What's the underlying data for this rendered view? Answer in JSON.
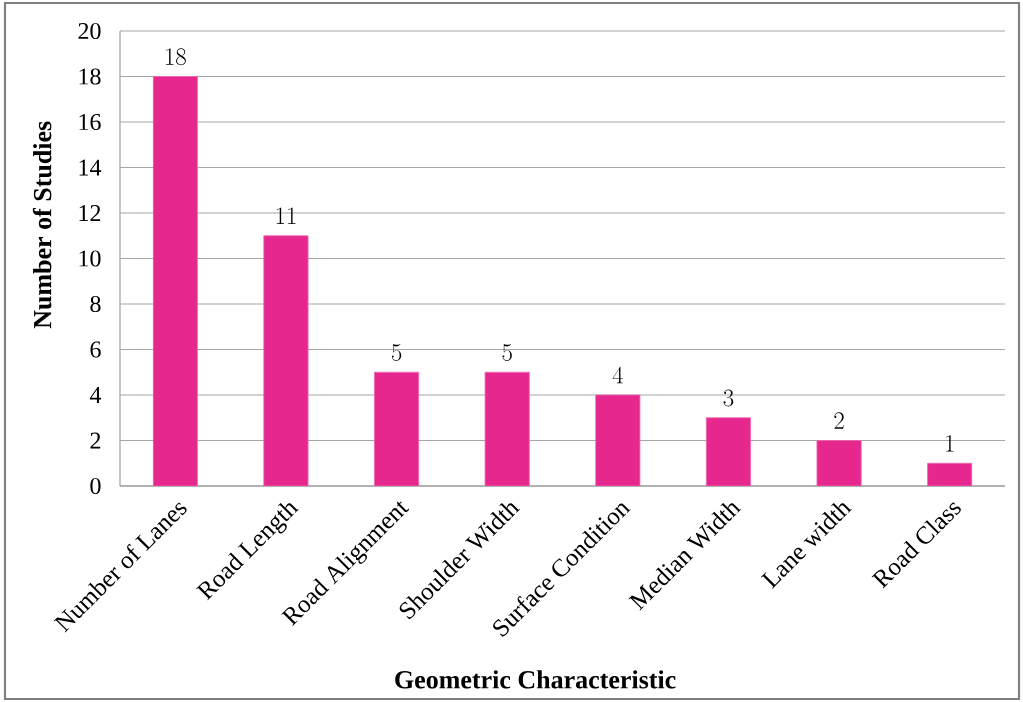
{
  "chart_data": {
    "type": "bar",
    "xlabel": "Geometric Characteristic",
    "ylabel": "Number of Studies",
    "categories": [
      "Number of Lanes",
      "Road Length",
      "Road Alignment",
      "Shoulder Width",
      "Surface Condition",
      "Median Width",
      "Lane width",
      "Road Class"
    ],
    "values": [
      18,
      11,
      5,
      5,
      4,
      3,
      2,
      1
    ],
    "color": "#e6288e",
    "ylim": [
      0,
      20
    ],
    "yticks": [
      0,
      2,
      4,
      6,
      8,
      10,
      12,
      14,
      16,
      18,
      20
    ],
    "grid": "y",
    "data_labels": true
  }
}
